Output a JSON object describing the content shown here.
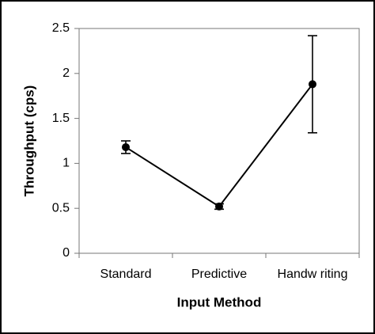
{
  "chart_data": {
    "type": "line",
    "categories": [
      "Standard",
      "Predictive",
      "Handw riting"
    ],
    "values": [
      1.18,
      0.52,
      1.88
    ],
    "errors": [
      0.07,
      0.03,
      0.54
    ],
    "color": "#000000",
    "xlabel": "Input Method",
    "ylabel": "Throughput (cps)",
    "ylim": [
      0,
      2.5
    ],
    "yticks": [
      0,
      0.5,
      1,
      1.5,
      2,
      2.5
    ],
    "grid": false
  }
}
